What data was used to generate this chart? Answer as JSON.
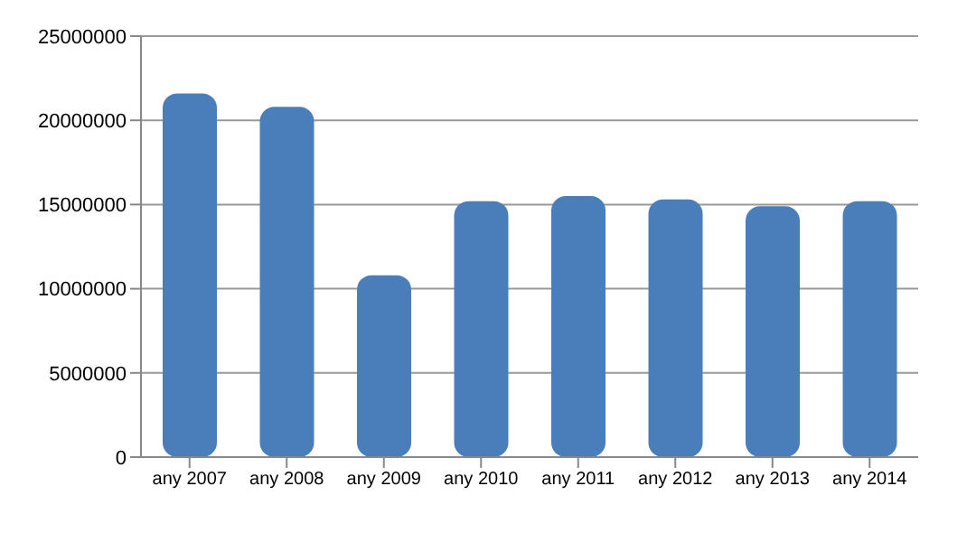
{
  "chart_data": {
    "type": "bar",
    "categories": [
      "any 2007",
      "any 2008",
      "any 2009",
      "any 2010",
      "any 2011",
      "any 2012",
      "any 2013",
      "any 2014"
    ],
    "values": [
      21600000,
      20800000,
      10800000,
      15200000,
      15500000,
      15300000,
      14900000,
      15200000
    ],
    "color": "#4a7ebb",
    "ylim": [
      0,
      25000000
    ],
    "yticks": [
      0,
      5000000,
      10000000,
      15000000,
      20000000,
      25000000
    ],
    "grid": "y"
  }
}
